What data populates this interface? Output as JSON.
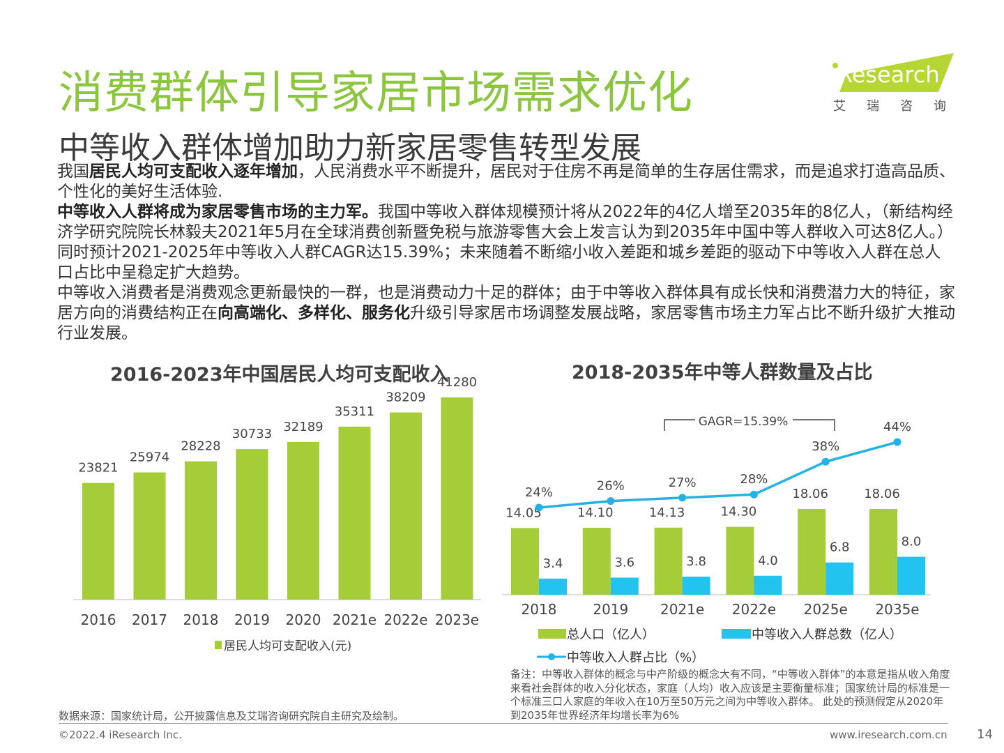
{
  "title": "消费群体引导家居市场需求优化",
  "subtitle": "中等收入群体增加助力新家居零售转型发展",
  "logo": {
    "brand": "iResearch",
    "cn": "艾瑞咨询"
  },
  "body": {
    "p1": [
      {
        "t": "我国",
        "b": false
      },
      {
        "t": "居民人均可支配收入逐年增加",
        "b": true
      },
      {
        "t": "，人民消费水平不断提升，居民对于住房不再是简单的生存居住需求，而是追求打造高品质、个性化的美好生活体验.",
        "b": false
      }
    ],
    "p2": [
      {
        "t": "中等收入人群将成为家居零售市场的主力军。",
        "b": true
      },
      {
        "t": "我国中等收入群体规模预计将从2022年的4亿人增至2035年的8亿人，（新结构经济学研究院院长林毅夫2021年5月在全球消费创新暨免税与旅游零售大会上发言认为到2035年中国中等人群收入可达8亿人。）同时预计2021-2025年中等收入人群CAGR达15.39%；未来随着不断缩小收入差距和城乡差距的驱动下中等收入人群在总人口占比中呈稳定扩大趋势。",
        "b": false
      }
    ],
    "p3": [
      {
        "t": "中等收入消费者是消费观念更新最快的一群，也是消费动力十足的群体；由于中等收入群体具有成长快和消费潜力大的特征，家居方向的消费结构正在",
        "b": false
      },
      {
        "t": "向高端化、多样化、服务化",
        "b": true
      },
      {
        "t": "升级引导家居市场调整发展战略，家居零售市场主力军占比不断升级扩大推动行业发展。",
        "b": false
      }
    ]
  },
  "chart_data": [
    {
      "type": "bar",
      "title": "2016-2023年中国居民人均可支配收入",
      "categories": [
        "2016",
        "2017",
        "2018",
        "2019",
        "2020",
        "2021e",
        "2022e",
        "2023e"
      ],
      "series": [
        {
          "name": "居民人均可支配收入(元)",
          "values": [
            23821,
            25974,
            28228,
            30733,
            32189,
            35311,
            38209,
            41280
          ],
          "color": "#a4cd39"
        }
      ],
      "ylim": [
        0,
        41280
      ],
      "grid": false,
      "legend": "bottom"
    },
    {
      "type": "bar",
      "title": "2018-2035年中等人群数量及占比",
      "categories": [
        "2018",
        "2019",
        "2021e",
        "2022e",
        "2025e",
        "2035e"
      ],
      "series": [
        {
          "name": "总人口（亿人）",
          "type": "bar",
          "values": [
            14.05,
            14.1,
            14.13,
            14.3,
            18.06,
            18.06
          ],
          "labels": [
            "14.05",
            "14.10",
            "14.13",
            "14.30",
            "18.06",
            "18.06"
          ],
          "color": "#a4cd39"
        },
        {
          "name": "中等收入人群总数（亿人）",
          "type": "bar",
          "values": [
            3.4,
            3.6,
            3.8,
            4.0,
            6.8,
            8.0
          ],
          "labels": [
            "3.4",
            "3.6",
            "3.8",
            "4.0",
            "6.8",
            "8.0"
          ],
          "color": "#22c3ee"
        },
        {
          "name": "中等收入人群占比（%）",
          "type": "line",
          "values": [
            24,
            26,
            27,
            28,
            38,
            44
          ],
          "labels": [
            "24%",
            "26%",
            "27%",
            "28%",
            "38%",
            "44%"
          ],
          "color": "#22b2e6"
        }
      ],
      "annotation": "GAGR=15.39%",
      "grid": false,
      "legend": "bottom"
    }
  ],
  "note": "备注：中等收入群体的概念与中产阶级的概念大有不同，“中等收入群体”的本意是指从收入角度来看社会群体的收入分化状态，家庭（人均）收入应该是主要衡量标准；国家统计局的标准是一个标准三口人家庭的年收入在10万至50万元之间为中等收入群体。 此处的预测假定从2020年到2035年世界经济年均增长率为6%",
  "source": "数据来源：国家统计局，公开披露信息及艾瑞咨询研究院自主研究及绘制。",
  "copyright": "©2022.4 iResearch Inc.",
  "website": "www.iresearch.com.cn",
  "page_number": "14"
}
